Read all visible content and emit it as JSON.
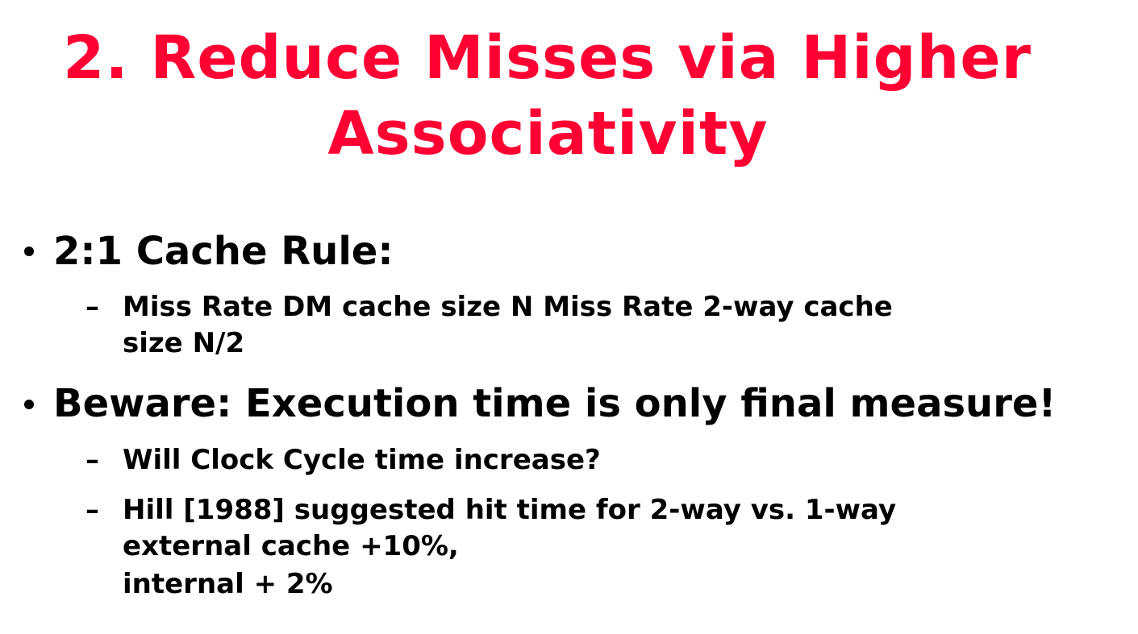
{
  "slide": {
    "title_line1": "2. Reduce Misses via Higher",
    "title_line2": "Associativity",
    "bullets": [
      {
        "text": "2:1 Cache Rule:",
        "subs": [
          {
            "lines": [
              "Miss Rate DM cache size N  Miss Rate 2-way cache",
              "size N/2"
            ]
          }
        ]
      },
      {
        "text": "Beware: Execution time is only final measure!",
        "subs": [
          {
            "lines": [
              "Will Clock Cycle time increase?"
            ]
          },
          {
            "lines": [
              "Hill [1988] suggested hit time for 2-way vs. 1-way",
              "external cache +10%,",
              "internal + 2%"
            ]
          }
        ]
      }
    ],
    "dash_symbol": "–",
    "colors": {
      "title": "#ff0033",
      "body": "#000000",
      "background": "#ffffff"
    }
  }
}
